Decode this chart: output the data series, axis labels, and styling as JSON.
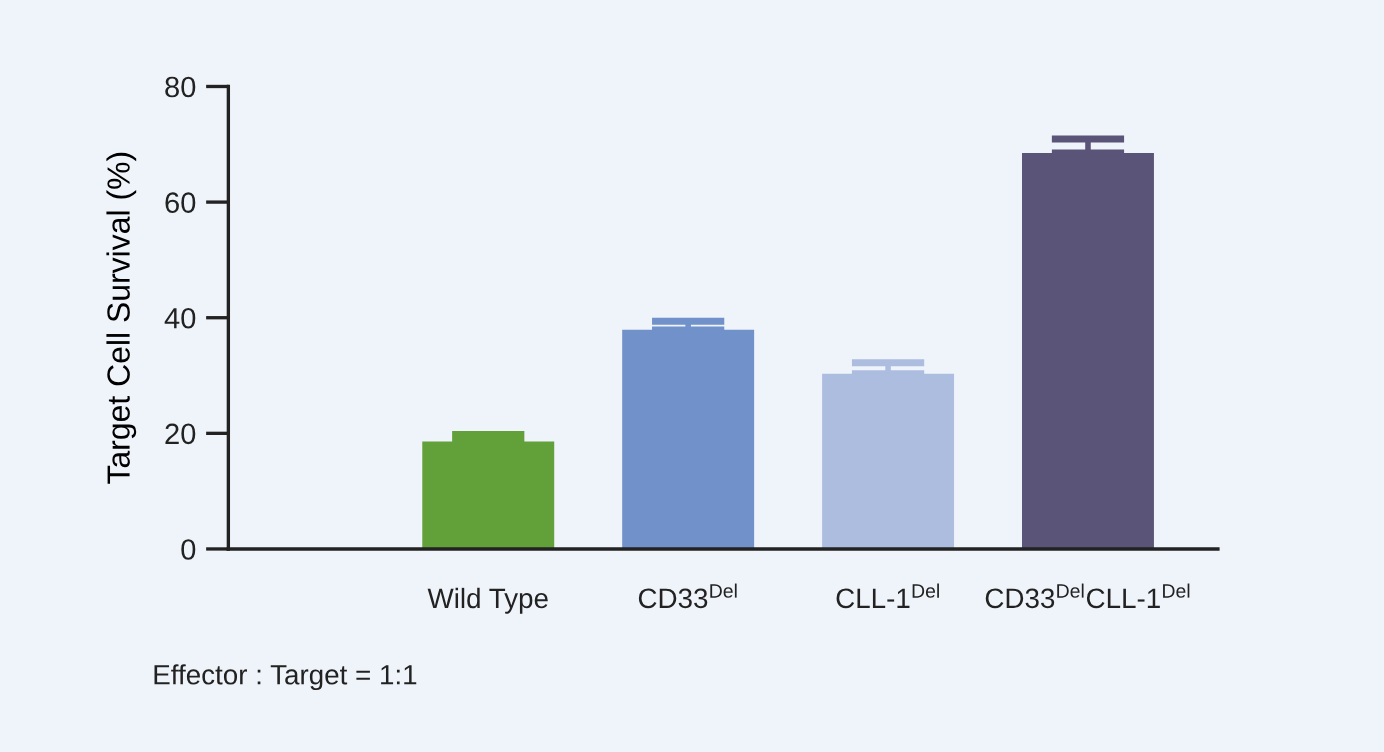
{
  "chart_data": {
    "type": "bar",
    "ylabel": "Target Cell Survival (%)",
    "categories": [
      "Wild Type",
      "CD33$^{Del}$",
      "CLL-1$^{Del}$",
      "CD33$^{Del}$CLL-1$^{Del}$"
    ],
    "values": [
      18.6,
      37.9,
      30.3,
      68.5
    ],
    "colors": [
      "#62a03a",
      "#7091c9",
      "#adbde0",
      "#5a5478"
    ],
    "errors": [
      [
        18.6,
        19.8
      ],
      [
        37.9,
        39.4
      ],
      [
        30.3,
        32.2
      ],
      [
        68.5,
        70.9
      ]
    ],
    "ylim": [
      0,
      80
    ],
    "yticks": [
      0,
      20,
      40,
      60,
      80
    ],
    "grid": false,
    "legend": false,
    "annotations": [
      "Effector : Target = 1:1"
    ]
  }
}
